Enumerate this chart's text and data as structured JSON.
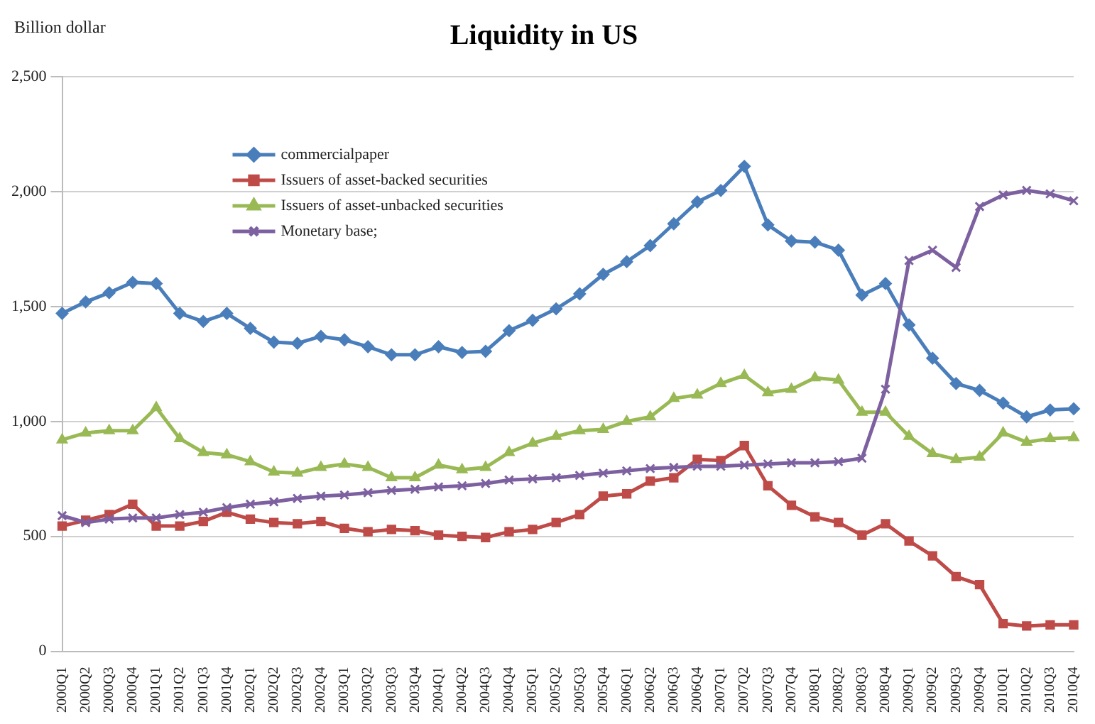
{
  "chart_data": {
    "type": "line",
    "title": "Liquidity in US",
    "ylabel": "Billion dollar",
    "categories": [
      "2000Q1",
      "2000Q2",
      "2000Q3",
      "2000Q4",
      "2001Q1",
      "2001Q2",
      "2001Q3",
      "2001Q4",
      "2002Q1",
      "2002Q2",
      "2002Q3",
      "2002Q4",
      "2003Q1",
      "2003Q2",
      "2003Q3",
      "2003Q4",
      "2004Q1",
      "2004Q2",
      "2004Q3",
      "2004Q4",
      "2005Q1",
      "2005Q2",
      "2005Q3",
      "2005Q4",
      "2006Q1",
      "2006Q2",
      "2006Q3",
      "2006Q4",
      "2007Q1",
      "2007Q2",
      "2007Q3",
      "2007Q4",
      "2008Q1",
      "2008Q2",
      "2008Q3",
      "2008Q4",
      "2009Q1",
      "2009Q2",
      "2009Q3",
      "2009Q4",
      "2010Q1",
      "2010Q2",
      "2010Q3",
      "2010Q4"
    ],
    "series": [
      {
        "name": "commercialpaper",
        "color": "#4a7ebb",
        "marker": "diamond",
        "values": [
          1470,
          1520,
          1560,
          1605,
          1600,
          1470,
          1435,
          1470,
          1405,
          1345,
          1340,
          1370,
          1355,
          1325,
          1290,
          1290,
          1325,
          1300,
          1305,
          1395,
          1440,
          1490,
          1555,
          1640,
          1695,
          1765,
          1860,
          1955,
          2005,
          2110,
          1855,
          1785,
          1780,
          1745,
          1550,
          1600,
          1420,
          1275,
          1165,
          1135,
          1080,
          1020,
          1050,
          1055
        ]
      },
      {
        "name": "Issuers of asset-backed securities",
        "color": "#be4b48",
        "marker": "square",
        "values": [
          545,
          570,
          595,
          640,
          545,
          545,
          565,
          605,
          575,
          560,
          555,
          565,
          535,
          520,
          530,
          525,
          505,
          500,
          495,
          520,
          530,
          560,
          595,
          675,
          685,
          740,
          755,
          835,
          830,
          895,
          720,
          635,
          585,
          560,
          505,
          555,
          480,
          415,
          325,
          290,
          120,
          110,
          115,
          115
        ]
      },
      {
        "name": "Issuers of asset-unbacked securities",
        "color": "#98b954",
        "marker": "triangle",
        "values": [
          920,
          950,
          960,
          960,
          1060,
          925,
          865,
          855,
          825,
          780,
          775,
          800,
          815,
          800,
          755,
          755,
          810,
          790,
          800,
          865,
          905,
          935,
          960,
          965,
          1000,
          1020,
          1100,
          1115,
          1165,
          1200,
          1125,
          1140,
          1190,
          1180,
          1040,
          1040,
          935,
          860,
          835,
          845,
          950,
          910,
          925,
          930
        ]
      },
      {
        "name": "Monetary base;",
        "color": "#7d60a0",
        "marker": "cross",
        "values": [
          590,
          560,
          575,
          580,
          580,
          595,
          605,
          625,
          640,
          650,
          665,
          675,
          680,
          690,
          700,
          705,
          715,
          720,
          730,
          745,
          750,
          755,
          765,
          775,
          785,
          795,
          800,
          805,
          805,
          810,
          815,
          820,
          820,
          825,
          840,
          1140,
          1700,
          1745,
          1670,
          1935,
          1985,
          2005,
          1990,
          1960
        ]
      }
    ],
    "ylim": [
      0,
      2500
    ],
    "yticks": [
      {
        "value": 0,
        "label": "0"
      },
      {
        "value": 500,
        "label": "500"
      },
      {
        "value": 1000,
        "label": "1,000"
      },
      {
        "value": 1500,
        "label": "1,500"
      },
      {
        "value": 2000,
        "label": "2,000"
      },
      {
        "value": 2500,
        "label": "2,500"
      }
    ],
    "grid": "y",
    "legend": "top left",
    "line_style": "solid"
  }
}
